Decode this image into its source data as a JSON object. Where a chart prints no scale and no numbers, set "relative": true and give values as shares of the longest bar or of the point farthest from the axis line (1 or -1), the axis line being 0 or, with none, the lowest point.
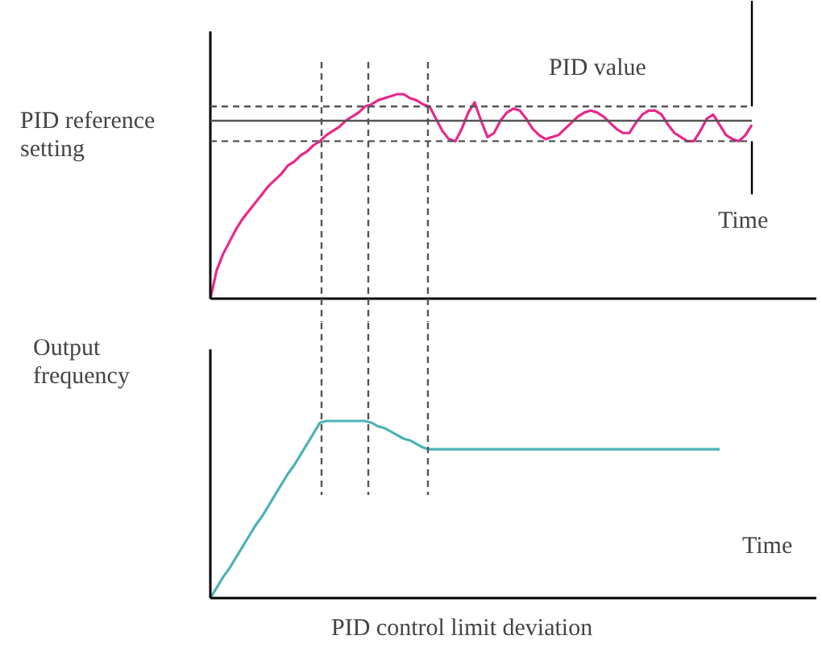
{
  "chart_data": [
    {
      "type": "line",
      "relative": true,
      "ylabel": "PID reference setting",
      "categories": [
        null,
        null,
        null,
        null,
        null,
        null,
        null,
        null,
        null,
        null,
        null,
        null,
        null,
        null,
        null,
        null,
        null,
        null,
        null,
        null,
        null,
        null,
        null,
        null,
        null,
        null,
        null,
        null,
        null,
        null,
        null,
        null,
        null,
        null,
        null,
        null,
        null,
        null,
        null,
        null,
        null,
        null,
        null,
        null,
        null,
        null,
        null,
        null,
        null,
        null,
        null,
        null,
        null,
        null,
        null,
        null,
        null,
        null,
        null,
        null,
        null,
        null,
        null,
        null,
        null,
        null,
        null,
        null,
        null,
        null,
        null,
        null,
        null,
        null,
        null,
        null,
        null,
        null,
        null,
        null,
        null,
        null,
        null,
        null,
        null
      ],
      "series": [
        {
          "color": "#e8288a",
          "values": [
            0,
            0.14,
            0.22,
            0.28,
            0.34,
            0.39,
            0.43,
            0.47,
            0.51,
            0.55,
            0.58,
            0.61,
            0.65,
            0.67,
            0.7,
            0.72,
            0.75,
            0.77,
            0.8,
            0.82,
            0.84,
            0.87,
            0.89,
            0.91,
            0.94,
            0.95,
            0.97,
            0.98,
            0.99,
            1,
            1,
            0.98,
            0.97,
            0.95,
            0.94,
            0.88,
            0.82,
            0.78,
            0.77,
            0.83,
            0.91,
            0.96,
            0.87,
            0.79,
            0.81,
            0.87,
            0.91,
            0.93,
            0.92,
            0.88,
            0.83,
            0.8,
            0.78,
            0.79,
            0.8,
            0.83,
            0.86,
            0.89,
            0.91,
            0.92,
            0.91,
            0.89,
            0.86,
            0.83,
            0.81,
            0.81,
            0.86,
            0.9,
            0.92,
            0.92,
            0.9,
            0.85,
            0.81,
            0.79,
            0.77,
            0.77,
            0.82,
            0.88,
            0.9,
            0.85,
            0.8,
            0.78,
            0.77,
            0.8,
            0.85
          ]
        }
      ],
      "ref_lines": [
        {
          "axis": "y",
          "value": 0.87,
          "color": "#555555",
          "line_style": "solid"
        },
        {
          "axis": "y",
          "value": 0.94,
          "color": "#555555",
          "line_style": "dashed"
        },
        {
          "axis": "y",
          "value": 0.77,
          "color": "#555555",
          "line_style": "dashed"
        }
      ],
      "annotations": [
        "PID value",
        "Time"
      ]
    },
    {
      "type": "line",
      "relative": true,
      "ylabel": "Output frequency",
      "categories": [
        null,
        null,
        null,
        null,
        null,
        null,
        null,
        null,
        null,
        null,
        null,
        null,
        null,
        null,
        null,
        null,
        null,
        null,
        null,
        null,
        null,
        null,
        null,
        null,
        null,
        null,
        null,
        null,
        null,
        null,
        null,
        null,
        null,
        null,
        null,
        null,
        null,
        null,
        null,
        null,
        null,
        null,
        null,
        null,
        null,
        null,
        null,
        null,
        null,
        null,
        null,
        null,
        null,
        null,
        null,
        null,
        null,
        null,
        null,
        null,
        null,
        null,
        null,
        null,
        null,
        null,
        null,
        null,
        null,
        null,
        null,
        null,
        null,
        null,
        null,
        null,
        null,
        null,
        null,
        null,
        null,
        null,
        null,
        null,
        null
      ],
      "series": [
        {
          "color": "#4bb3b8",
          "values": [
            0,
            0.06,
            0.12,
            0.17,
            0.23,
            0.29,
            0.35,
            0.41,
            0.46,
            0.52,
            0.58,
            0.64,
            0.7,
            0.75,
            0.81,
            0.87,
            0.93,
            0.99,
            1,
            1,
            1,
            1,
            1,
            1,
            1,
            0.99,
            0.97,
            0.96,
            0.94,
            0.92,
            0.9,
            0.89,
            0.87,
            0.85,
            0.84,
            0.84,
            0.84,
            0.84,
            0.84,
            0.84,
            0.84,
            0.84,
            0.84,
            0.84,
            0.84,
            0.84,
            0.84,
            0.84,
            0.84,
            0.84,
            0.84,
            0.84,
            0.84,
            0.84,
            0.84,
            0.84,
            0.84,
            0.84,
            0.84,
            0.84,
            0.84,
            0.84,
            0.84,
            0.84,
            0.84,
            0.84,
            0.84,
            0.84,
            0.84,
            0.84,
            0.84,
            0.84,
            0.84,
            0.84,
            0.84,
            0.84,
            0.84,
            0.84,
            0.84,
            0.84,
            null,
            null,
            null,
            null,
            null
          ]
        }
      ],
      "annotations": [
        "Time",
        "PID control limit deviation"
      ]
    }
  ]
}
